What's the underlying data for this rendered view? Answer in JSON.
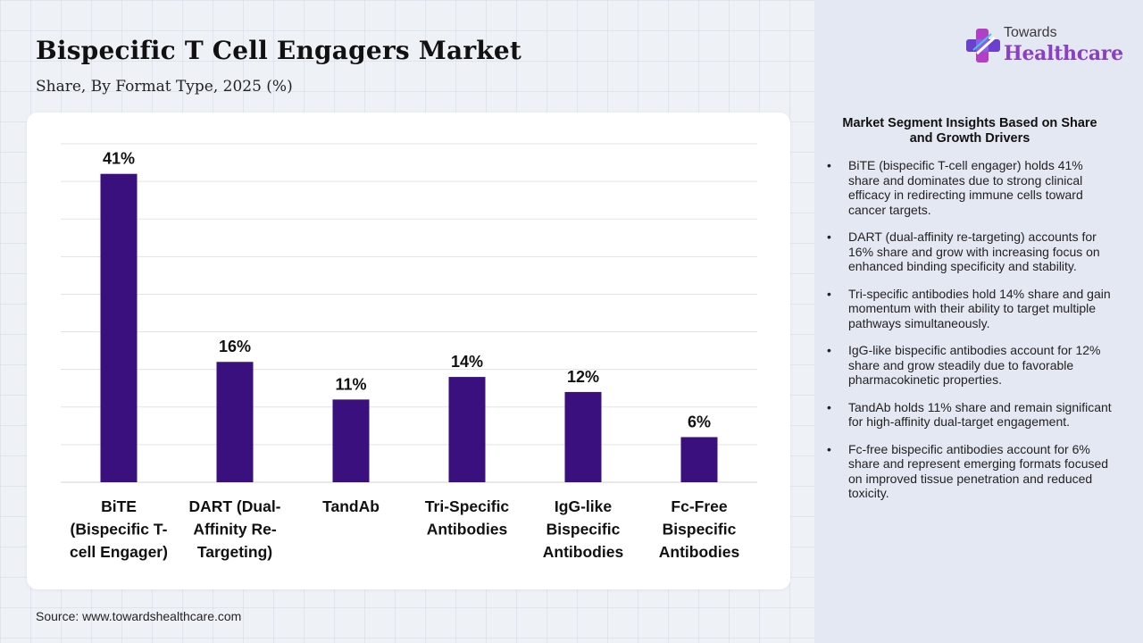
{
  "header": {
    "title": "Bispecific T Cell Engagers Market",
    "subtitle": "Share, By Format Type, 2025 (%)"
  },
  "logo": {
    "top_text": "Towards",
    "main_text": "Healthcare"
  },
  "chart_data": {
    "type": "bar",
    "categories": [
      "BiTE (Bispecific T-cell Engager)",
      "DART (Dual-Affinity Re-Targeting)",
      "TandAb",
      "Tri-Specific Antibodies",
      "IgG-like Bispecific Antibodies",
      "Fc-Free Bispecific Antibodies"
    ],
    "category_lines": [
      [
        "BiTE",
        "(Bispecific T-",
        "cell Engager)"
      ],
      [
        "DART (Dual-",
        "Affinity Re-",
        "Targeting)"
      ],
      [
        "TandAb"
      ],
      [
        "Tri-Specific",
        "Antibodies"
      ],
      [
        "IgG-like",
        "Bispecific",
        "Antibodies"
      ],
      [
        "Fc-Free",
        "Bispecific",
        "Antibodies"
      ]
    ],
    "values": [
      41,
      16,
      11,
      14,
      12,
      6
    ],
    "data_labels": [
      "41%",
      "16%",
      "11%",
      "14%",
      "12%",
      "6%"
    ],
    "ylim": [
      0,
      45
    ],
    "grid": true,
    "bar_color": "#3a0f7e"
  },
  "insights": {
    "title": "Market Segment Insights Based on Share and Growth Drivers",
    "items": [
      "BiTE (bispecific T-cell engager) holds 41% share and dominates due to strong clinical efficacy in redirecting immune cells toward cancer targets.",
      "DART (dual-affinity re-targeting) accounts for 16% share and grow with increasing focus on enhanced binding specificity and stability.",
      "Tri-specific antibodies hold 14% share and gain momentum with their ability to target multiple pathways simultaneously.",
      "IgG-like bispecific antibodies account for 12% share and grow steadily due to favorable pharmacokinetic properties.",
      "TandAb holds 11% share and remain significant for high-affinity dual-target engagement.",
      "Fc-free bispecific antibodies account for 6% share and represent emerging formats focused on improved tissue penetration and reduced toxicity."
    ]
  },
  "footer": {
    "source": "Source: www.towardshealthcare.com"
  }
}
